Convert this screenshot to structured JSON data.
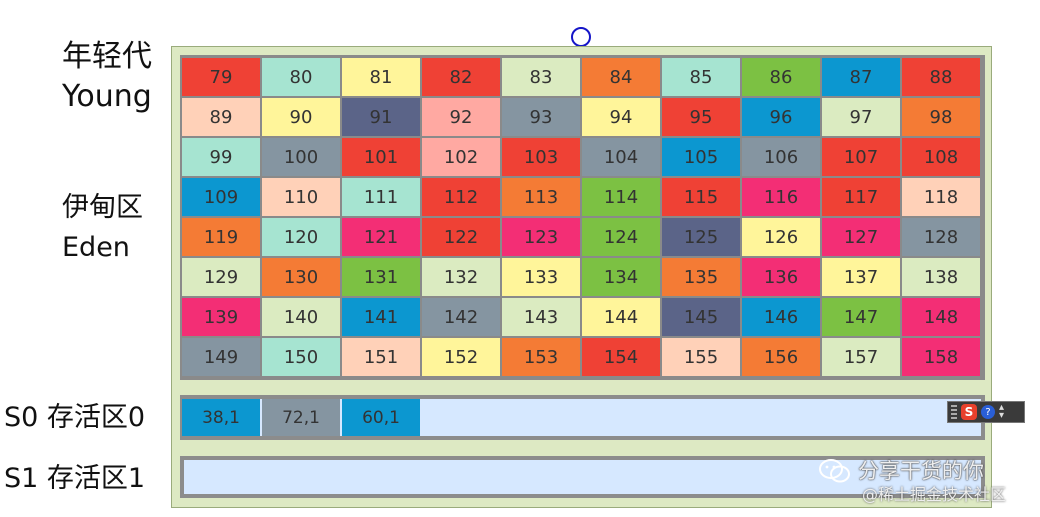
{
  "labels": {
    "young_cn": "年轻代",
    "young_en": "Young",
    "eden_cn": "伊甸区",
    "eden_en": "Eden",
    "s0": "S0 存活区0",
    "s1": "S1 存活区1"
  },
  "colors": {
    "red": "#ef4135",
    "teal": "#a6e4d1",
    "yellow": "#fff59a",
    "lime": "#dbebc1",
    "orange": "#f47b35",
    "green": "#7cc143",
    "blue": "#0c97d0",
    "peach": "#ffd1b8",
    "navy": "#5b6488",
    "pink": "#ffa9a2",
    "gray": "#8595a1",
    "magenta": "#f32e75"
  },
  "eden": {
    "rows": [
      [
        [
          "79",
          "red"
        ],
        [
          "80",
          "teal"
        ],
        [
          "81",
          "yellow"
        ],
        [
          "82",
          "red"
        ],
        [
          "83",
          "lime"
        ],
        [
          "84",
          "orange"
        ],
        [
          "85",
          "teal"
        ],
        [
          "86",
          "green"
        ],
        [
          "87",
          "blue"
        ],
        [
          "88",
          "red"
        ]
      ],
      [
        [
          "89",
          "peach"
        ],
        [
          "90",
          "yellow"
        ],
        [
          "91",
          "navy"
        ],
        [
          "92",
          "pink"
        ],
        [
          "93",
          "gray"
        ],
        [
          "94",
          "yellow"
        ],
        [
          "95",
          "red"
        ],
        [
          "96",
          "blue"
        ],
        [
          "97",
          "lime"
        ],
        [
          "98",
          "orange"
        ]
      ],
      [
        [
          "99",
          "teal"
        ],
        [
          "100",
          "gray"
        ],
        [
          "101",
          "red"
        ],
        [
          "102",
          "pink"
        ],
        [
          "103",
          "red"
        ],
        [
          "104",
          "gray"
        ],
        [
          "105",
          "blue"
        ],
        [
          "106",
          "gray"
        ],
        [
          "107",
          "red"
        ],
        [
          "108",
          "red"
        ]
      ],
      [
        [
          "109",
          "blue"
        ],
        [
          "110",
          "peach"
        ],
        [
          "111",
          "teal"
        ],
        [
          "112",
          "red"
        ],
        [
          "113",
          "orange"
        ],
        [
          "114",
          "green"
        ],
        [
          "115",
          "red"
        ],
        [
          "116",
          "magenta"
        ],
        [
          "117",
          "red"
        ],
        [
          "118",
          "peach"
        ]
      ],
      [
        [
          "119",
          "orange"
        ],
        [
          "120",
          "teal"
        ],
        [
          "121",
          "magenta"
        ],
        [
          "122",
          "red"
        ],
        [
          "123",
          "magenta"
        ],
        [
          "124",
          "green"
        ],
        [
          "125",
          "navy"
        ],
        [
          "126",
          "yellow"
        ],
        [
          "127",
          "magenta"
        ],
        [
          "128",
          "gray"
        ]
      ],
      [
        [
          "129",
          "lime"
        ],
        [
          "130",
          "orange"
        ],
        [
          "131",
          "green"
        ],
        [
          "132",
          "lime"
        ],
        [
          "133",
          "yellow"
        ],
        [
          "134",
          "green"
        ],
        [
          "135",
          "orange"
        ],
        [
          "136",
          "magenta"
        ],
        [
          "137",
          "yellow"
        ],
        [
          "138",
          "lime"
        ]
      ],
      [
        [
          "139",
          "magenta"
        ],
        [
          "140",
          "lime"
        ],
        [
          "141",
          "blue"
        ],
        [
          "142",
          "gray"
        ],
        [
          "143",
          "lime"
        ],
        [
          "144",
          "yellow"
        ],
        [
          "145",
          "navy"
        ],
        [
          "146",
          "blue"
        ],
        [
          "147",
          "green"
        ],
        [
          "148",
          "magenta"
        ]
      ],
      [
        [
          "149",
          "gray"
        ],
        [
          "150",
          "teal"
        ],
        [
          "151",
          "peach"
        ],
        [
          "152",
          "yellow"
        ],
        [
          "153",
          "orange"
        ],
        [
          "154",
          "red"
        ],
        [
          "155",
          "peach"
        ],
        [
          "156",
          "orange"
        ],
        [
          "157",
          "lime"
        ],
        [
          "158",
          "magenta"
        ]
      ]
    ]
  },
  "s0_cells": [
    [
      "38,1",
      "blue"
    ],
    [
      "72,1",
      "gray"
    ],
    [
      "60,1",
      "blue"
    ]
  ],
  "s1_cells": [],
  "ime_toolbar": {
    "icon": "sogou-s-icon",
    "help": "?"
  },
  "watermark": {
    "line1": "分享干货的你",
    "line2": "@稀土掘金技术社区",
    "icon": "wechat-icon"
  }
}
